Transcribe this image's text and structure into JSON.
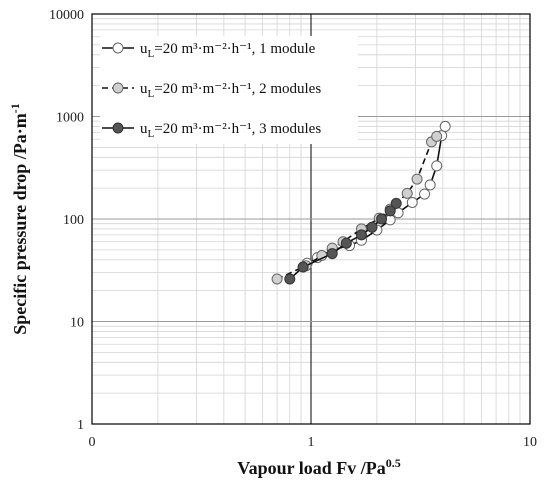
{
  "chart_data": {
    "type": "scatter",
    "xlabel": "Vapour load Fv /Pa",
    "xlabel_sup": "0.5",
    "ylabel": "Specific pressure drop /Pa·m",
    "ylabel_sup": "-1",
    "x_scale": "log",
    "y_scale": "log",
    "xlim": [
      0.1,
      10
    ],
    "ylim": [
      1,
      10000
    ],
    "x_ticks": [
      "0",
      "1",
      "10"
    ],
    "y_ticks": [
      "1",
      "10",
      "100",
      "1000",
      "10000"
    ],
    "grid": true,
    "legend_position": "top-left",
    "series": [
      {
        "name": "u",
        "name_sub": "L",
        "name_rest": "=20 m³·m⁻²·h⁻¹, 1 module",
        "line_style": "solid",
        "marker_fill": "#ffffff",
        "points": [
          [
            0.96,
            37
          ],
          [
            1.07,
            42
          ],
          [
            1.25,
            50
          ],
          [
            1.5,
            55
          ],
          [
            1.7,
            62
          ],
          [
            2.0,
            78
          ],
          [
            2.3,
            98
          ],
          [
            2.5,
            115
          ],
          [
            2.9,
            145
          ],
          [
            3.3,
            175
          ],
          [
            3.5,
            215
          ],
          [
            3.75,
            330
          ],
          [
            3.95,
            650
          ],
          [
            4.1,
            800
          ]
        ]
      },
      {
        "name": "u",
        "name_sub": "L",
        "name_rest": "=20 m³·m⁻²·h⁻¹, 2 modules",
        "line_style": "dashed",
        "marker_fill": "#d0d0d0",
        "points": [
          [
            0.7,
            26
          ],
          [
            0.95,
            35
          ],
          [
            1.12,
            44
          ],
          [
            1.25,
            52
          ],
          [
            1.4,
            60
          ],
          [
            1.7,
            80
          ],
          [
            2.05,
            102
          ],
          [
            2.3,
            125
          ],
          [
            2.75,
            178
          ],
          [
            3.05,
            245
          ],
          [
            3.55,
            565
          ],
          [
            3.75,
            640
          ]
        ]
      },
      {
        "name": "u",
        "name_sub": "L",
        "name_rest": "=20 m³·m⁻²·h⁻¹, 3 modules",
        "line_style": "solid",
        "marker_fill": "#555555",
        "points": [
          [
            0.8,
            26
          ],
          [
            0.92,
            34
          ],
          [
            1.25,
            46
          ],
          [
            1.45,
            58
          ],
          [
            1.7,
            70
          ],
          [
            1.9,
            83
          ],
          [
            2.1,
            100
          ],
          [
            2.3,
            120
          ],
          [
            2.45,
            142
          ]
        ]
      }
    ]
  }
}
